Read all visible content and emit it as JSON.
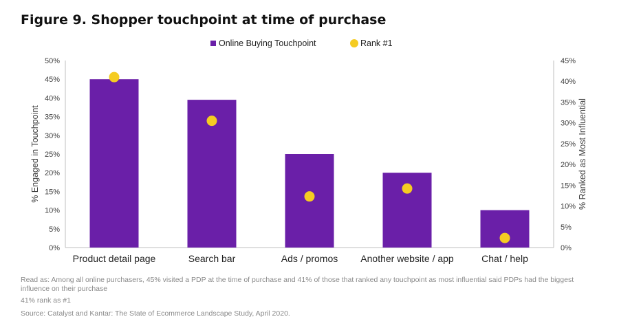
{
  "figure": {
    "title": "Figure 9. Shopper touchpoint at time of purchase"
  },
  "chart_data": {
    "type": "bar",
    "categories": [
      "Product detail page",
      "Search bar",
      "Ads / promos",
      "Another website / app",
      "Chat / help"
    ],
    "series": [
      {
        "name": "Online Buying Touchpoint",
        "kind": "bar",
        "axis": "left",
        "color": "#6a1fa8",
        "values": [
          45,
          39.5,
          25,
          20,
          10
        ]
      },
      {
        "name": "Rank #1",
        "kind": "marker",
        "axis": "right",
        "color": "#f5cc22",
        "values": [
          41,
          30.5,
          12.3,
          14.2,
          2.3
        ]
      }
    ],
    "ylabel": "% Engaged in Touchpoint",
    "y2label": "% Ranked as Most Influential",
    "ylim": [
      0,
      50
    ],
    "y2lim": [
      0,
      45
    ],
    "yticks": [
      "0%",
      "5%",
      "10%",
      "15%",
      "20%",
      "25%",
      "30%",
      "35%",
      "40%",
      "45%",
      "50%"
    ],
    "y2ticks": [
      "0%",
      "5%",
      "10%",
      "15%",
      "20%",
      "25%",
      "30%",
      "35%",
      "40%",
      "45%"
    ],
    "legend_position": "top-center",
    "grid": false
  },
  "notes": {
    "read_as": "Read as: Among all online purchasers, 45% visited a PDP at the time of purchase and 41% of those that ranked any touchpoint as most influential said PDPs had the biggest influence on their purchase",
    "rank_note": "41% rank as #1",
    "source": "Source: Catalyst and Kantar: The State of Ecommerce Landscape Study, April 2020."
  }
}
